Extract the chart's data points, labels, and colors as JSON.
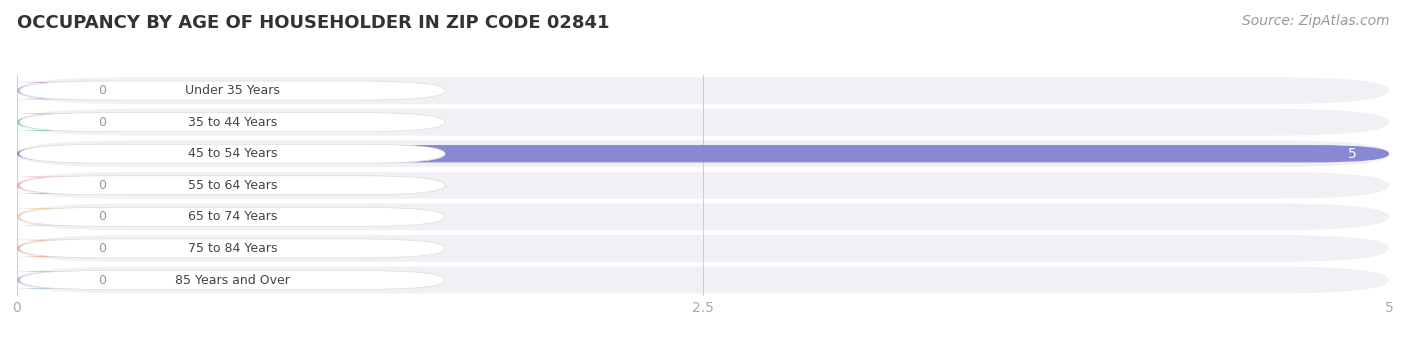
{
  "title": "OCCUPANCY BY AGE OF HOUSEHOLDER IN ZIP CODE 02841",
  "source": "Source: ZipAtlas.com",
  "categories": [
    "Under 35 Years",
    "35 to 44 Years",
    "45 to 54 Years",
    "55 to 64 Years",
    "65 to 74 Years",
    "75 to 84 Years",
    "85 Years and Over"
  ],
  "values": [
    0,
    0,
    5,
    0,
    0,
    0,
    0
  ],
  "bar_colors": [
    "#c9a8d4",
    "#7ecfc4",
    "#8888d4",
    "#f4a0b4",
    "#f5c990",
    "#f0a898",
    "#a0b8e0"
  ],
  "background_color": "#ffffff",
  "row_bg_color": "#f0f0f5",
  "bar_bg_color": "#e2e2ea",
  "xlim": [
    0,
    5
  ],
  "xticks": [
    0,
    2.5,
    5
  ],
  "title_fontsize": 13,
  "source_fontsize": 10,
  "bar_height": 0.55
}
